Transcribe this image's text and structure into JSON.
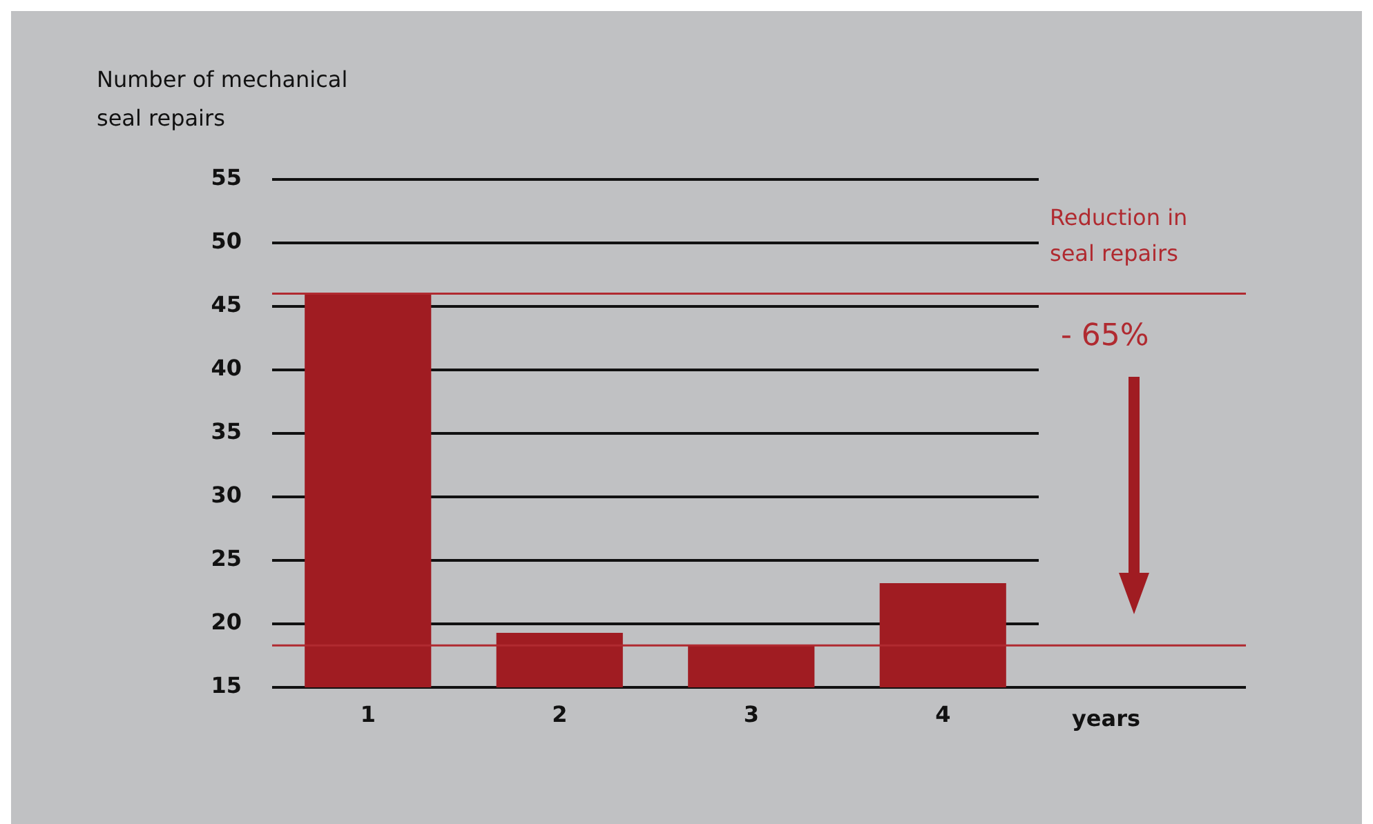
{
  "chart_data": {
    "type": "bar",
    "ylabel": "Number of mechanical seal repairs",
    "xlabel": "years",
    "categories": [
      "1",
      "2",
      "3",
      "4"
    ],
    "values": [
      46,
      19.3,
      18.3,
      23.2
    ],
    "color": "#a01c22",
    "ylim": [
      15,
      55
    ],
    "yticks": [
      15,
      20,
      25,
      30,
      35,
      40,
      45,
      50,
      55
    ],
    "grid": "y",
    "ref_lines": [
      {
        "axis": "y",
        "value": 46,
        "color": "#b02a30"
      },
      {
        "axis": "y",
        "value": 18.3,
        "color": "#b02a30"
      }
    ],
    "annotations": [
      "Reduction in seal repairs",
      "- 65%"
    ]
  }
}
